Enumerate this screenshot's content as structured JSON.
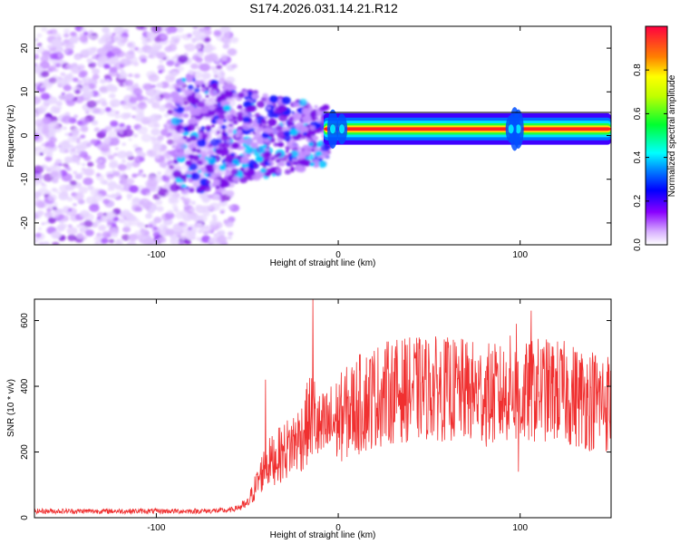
{
  "title": "S174.2026.031.14.21.R12",
  "chart_data": [
    {
      "type": "heatmap",
      "xlabel": "Height of straight line (km)",
      "ylabel": "Frequency (Hz)",
      "xlim": [
        -167,
        150
      ],
      "ylim": [
        -25,
        25
      ],
      "xticks": [
        -100,
        0,
        100
      ],
      "yticks": [
        -20,
        -10,
        0,
        10,
        20
      ],
      "description_segments": [
        {
          "x_range": [
            -167,
            -60
          ],
          "freq_spread_hz": 25,
          "level": 0.1
        },
        {
          "x_range": [
            -90,
            -10
          ],
          "freq_spread_hz": 10,
          "level": 0.3
        },
        {
          "x_range": [
            -10,
            150
          ],
          "center_freq_hz": 1.5,
          "level": 0.9
        }
      ],
      "colorbar": {
        "label": "Normalized spectral amplitude",
        "range": [
          0,
          1
        ],
        "ticks": [
          0.0,
          0.2,
          0.4,
          0.6,
          0.8
        ]
      }
    },
    {
      "type": "line",
      "xlabel": "Height of straight line (km)",
      "ylabel": "SNR (10 * v/v)",
      "xlim": [
        -167,
        150
      ],
      "ylim": [
        0,
        665
      ],
      "xticks": [
        -100,
        0,
        100
      ],
      "yticks": [
        0,
        200,
        400,
        600
      ],
      "series": [
        {
          "name": "SNR",
          "color": "#f03030",
          "x": [
            -167,
            -140,
            -120,
            -100,
            -80,
            -60,
            -50,
            -45,
            -40,
            -30,
            -20,
            -14,
            -10,
            0,
            10,
            20,
            30,
            40,
            50,
            60,
            70,
            80,
            90,
            95,
            100,
            105,
            110,
            120,
            130,
            140,
            150
          ],
          "values": [
            20,
            20,
            20,
            20,
            20,
            22,
            40,
            100,
            160,
            200,
            250,
            320,
            260,
            300,
            340,
            370,
            385,
            390,
            395,
            390,
            385,
            375,
            370,
            400,
            360,
            380,
            390,
            385,
            370,
            360,
            350
          ],
          "spikes": [
            {
              "x": -14,
              "y": 665
            },
            {
              "x": -40,
              "y": 420
            },
            {
              "x": 98,
              "y": 590
            },
            {
              "x": 106,
              "y": 630
            },
            {
              "x": 99,
              "y": 140
            }
          ]
        }
      ]
    }
  ]
}
